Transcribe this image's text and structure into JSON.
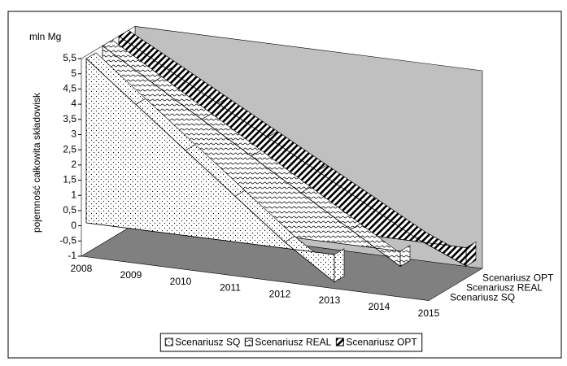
{
  "chart_data": {
    "type": "area",
    "y_unit": "mln Mg",
    "y_label": "pojemność całkowita składowisk",
    "categories": [
      "2008",
      "2009",
      "2010",
      "2011",
      "2012",
      "2013",
      "2014",
      "2015"
    ],
    "series": [
      {
        "name": "Scenariusz SQ",
        "color": "#000000",
        "pattern": "dots",
        "values": [
          5.4,
          4.1,
          2.8,
          1.5,
          0.2,
          -0.9,
          null,
          null
        ]
      },
      {
        "name": "Scenariusz REAL",
        "color": "#000000",
        "pattern": "waves",
        "values": [
          5.5,
          4.5,
          3.5,
          2.5,
          1.5,
          0.5,
          -0.5,
          null
        ]
      },
      {
        "name": "Scenariusz OPT",
        "color": "#000000",
        "pattern": "stripes",
        "values": [
          5.5,
          4.6,
          3.7,
          2.8,
          1.9,
          1.0,
          0.1,
          -0.6
        ]
      }
    ],
    "ylim": [
      -1,
      5.5
    ],
    "yticks": [
      -1,
      {
        "value": -0.5,
        "label": "-0,5"
      },
      0,
      {
        "value": 0.5,
        "label": "0,5"
      },
      1,
      {
        "value": 1.5,
        "label": "1,5"
      },
      2,
      {
        "value": 2.5,
        "label": "2,5"
      },
      3,
      {
        "value": 3.5,
        "label": "3,5"
      },
      4,
      {
        "value": 4.5,
        "label": "4,5"
      },
      5,
      {
        "value": 5.5,
        "label": "5,5"
      }
    ],
    "wall_color": "#c0c0c0",
    "floor_color": "#808080",
    "legend": "bottom"
  }
}
